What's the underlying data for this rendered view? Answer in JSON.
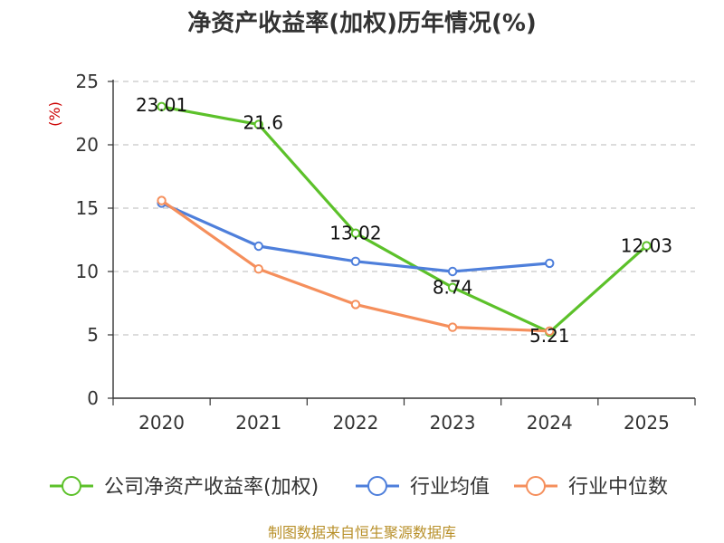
{
  "chart_data": {
    "type": "line",
    "title": "净资产收益率(加权)历年情况(%)",
    "ylabel": "(%)",
    "xlabel": "",
    "categories": [
      "2020",
      "2021",
      "2022",
      "2023",
      "2024",
      "2025"
    ],
    "ylim": [
      0,
      25
    ],
    "yticks": [
      0,
      5,
      10,
      15,
      20,
      25
    ],
    "grid": true,
    "legend_position": "bottom",
    "series": [
      {
        "name": "公司净资产收益率(加权)",
        "color": "#5cc12a",
        "values": [
          23.01,
          21.6,
          13.02,
          8.74,
          5.21,
          12.03
        ],
        "labels": [
          "23.01",
          "21.6",
          "13.02",
          "8.74",
          "5.21",
          "12.03"
        ]
      },
      {
        "name": "行业均值",
        "color": "#4e7fdb",
        "values": [
          15.4,
          12.0,
          10.8,
          10.0,
          10.65,
          null
        ]
      },
      {
        "name": "行业中位数",
        "color": "#f58f5c",
        "values": [
          15.6,
          10.2,
          7.4,
          5.6,
          5.3,
          null
        ]
      }
    ]
  },
  "source_text": "制图数据来自恒生聚源数据库"
}
